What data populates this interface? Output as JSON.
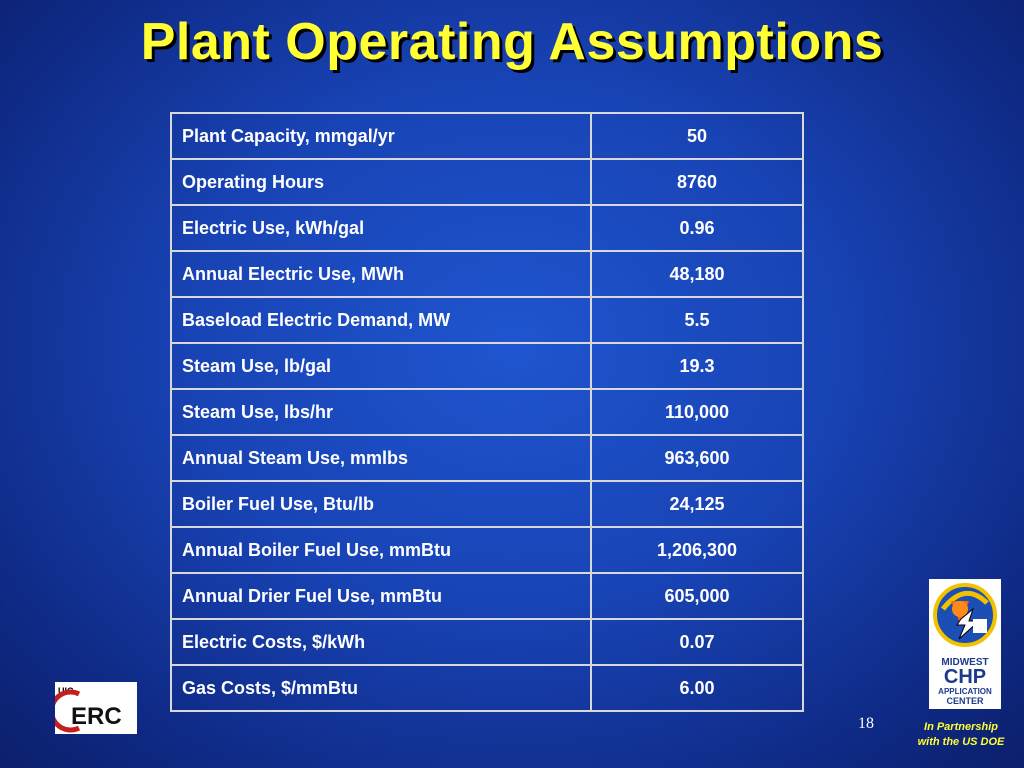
{
  "slide": {
    "title": "Plant Operating Assumptions",
    "page_number": "18",
    "partner_line1": "In Partnership",
    "partner_line2": "with the US DOE"
  },
  "logos": {
    "left": {
      "prefix": "UIC",
      "text": "ERC"
    },
    "right": {
      "line1": "MIDWEST",
      "line2": "CHP",
      "line3": "APPLICATION",
      "line4": "CENTER"
    }
  },
  "table": {
    "rows": [
      {
        "label": "Plant Capacity, mmgal/yr",
        "value": "50"
      },
      {
        "label": "Operating Hours",
        "value": "8760"
      },
      {
        "label": "Electric Use, kWh/gal",
        "value": "0.96"
      },
      {
        "label": "Annual Electric Use, MWh",
        "value": "48,180"
      },
      {
        "label": "Baseload Electric Demand, MW",
        "value": "5.5"
      },
      {
        "label": "Steam Use, lb/gal",
        "value": "19.3"
      },
      {
        "label": "Steam Use, lbs/hr",
        "value": "110,000"
      },
      {
        "label": "Annual Steam Use, mmlbs",
        "value": "963,600"
      },
      {
        "label": "Boiler Fuel Use, Btu/lb",
        "value": "24,125"
      },
      {
        "label": "Annual Boiler Fuel Use, mmBtu",
        "value": "1,206,300"
      },
      {
        "label": "Annual Drier Fuel Use, mmBtu",
        "value": "605,000"
      },
      {
        "label": "Electric Costs, $/kWh",
        "value": "0.07"
      },
      {
        "label": "Gas Costs, $/mmBtu",
        "value": "6.00"
      }
    ]
  }
}
